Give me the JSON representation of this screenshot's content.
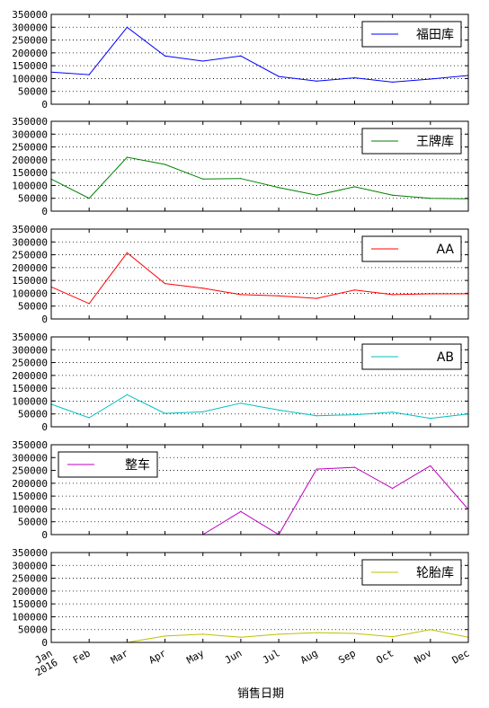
{
  "chart_data": {
    "type": "line",
    "layout": "stacked-subplots",
    "xlabel": "销售日期",
    "categories": [
      "Jan\n2016",
      "Feb",
      "Mar",
      "Apr",
      "May",
      "Jun",
      "Jul",
      "Aug",
      "Sep",
      "Oct",
      "Nov",
      "Dec"
    ],
    "ylim": [
      0,
      350000
    ],
    "yticks": [
      "0",
      "50000",
      "100000",
      "150000",
      "200000",
      "250000",
      "300000",
      "350000"
    ],
    "grid": "horizontal dotted",
    "series": [
      {
        "name": "福田库",
        "color": "#0000ff",
        "legend": "top-right",
        "values": [
          125000,
          115000,
          300000,
          188000,
          168000,
          188000,
          108000,
          90000,
          103000,
          86000,
          98000,
          112000
        ]
      },
      {
        "name": "王牌库",
        "color": "#008000",
        "legend": "top-right",
        "values": [
          125000,
          50000,
          210000,
          182000,
          125000,
          127000,
          92000,
          62000,
          95000,
          62000,
          50000,
          48000
        ]
      },
      {
        "name": "AA",
        "color": "#ff0000",
        "legend": "top-right",
        "values": [
          125000,
          60000,
          258000,
          138000,
          120000,
          95000,
          90000,
          80000,
          113000,
          95000,
          98000,
          98000
        ]
      },
      {
        "name": "AB",
        "color": "#00bfbf",
        "legend": "top-right",
        "values": [
          88000,
          35000,
          125000,
          52000,
          58000,
          92000,
          65000,
          43000,
          47000,
          57000,
          33000,
          50000
        ]
      },
      {
        "name": "整车",
        "color": "#bf00bf",
        "legend": "top-left",
        "values": [
          0,
          0,
          0,
          0,
          0,
          90000,
          0,
          255000,
          262000,
          180000,
          268000,
          98000
        ]
      },
      {
        "name": "轮胎库",
        "color": "#bfbf00",
        "legend": "top-right",
        "values": [
          0,
          0,
          0,
          25000,
          32000,
          20000,
          32000,
          38000,
          35000,
          22000,
          50000,
          20000
        ]
      }
    ]
  }
}
